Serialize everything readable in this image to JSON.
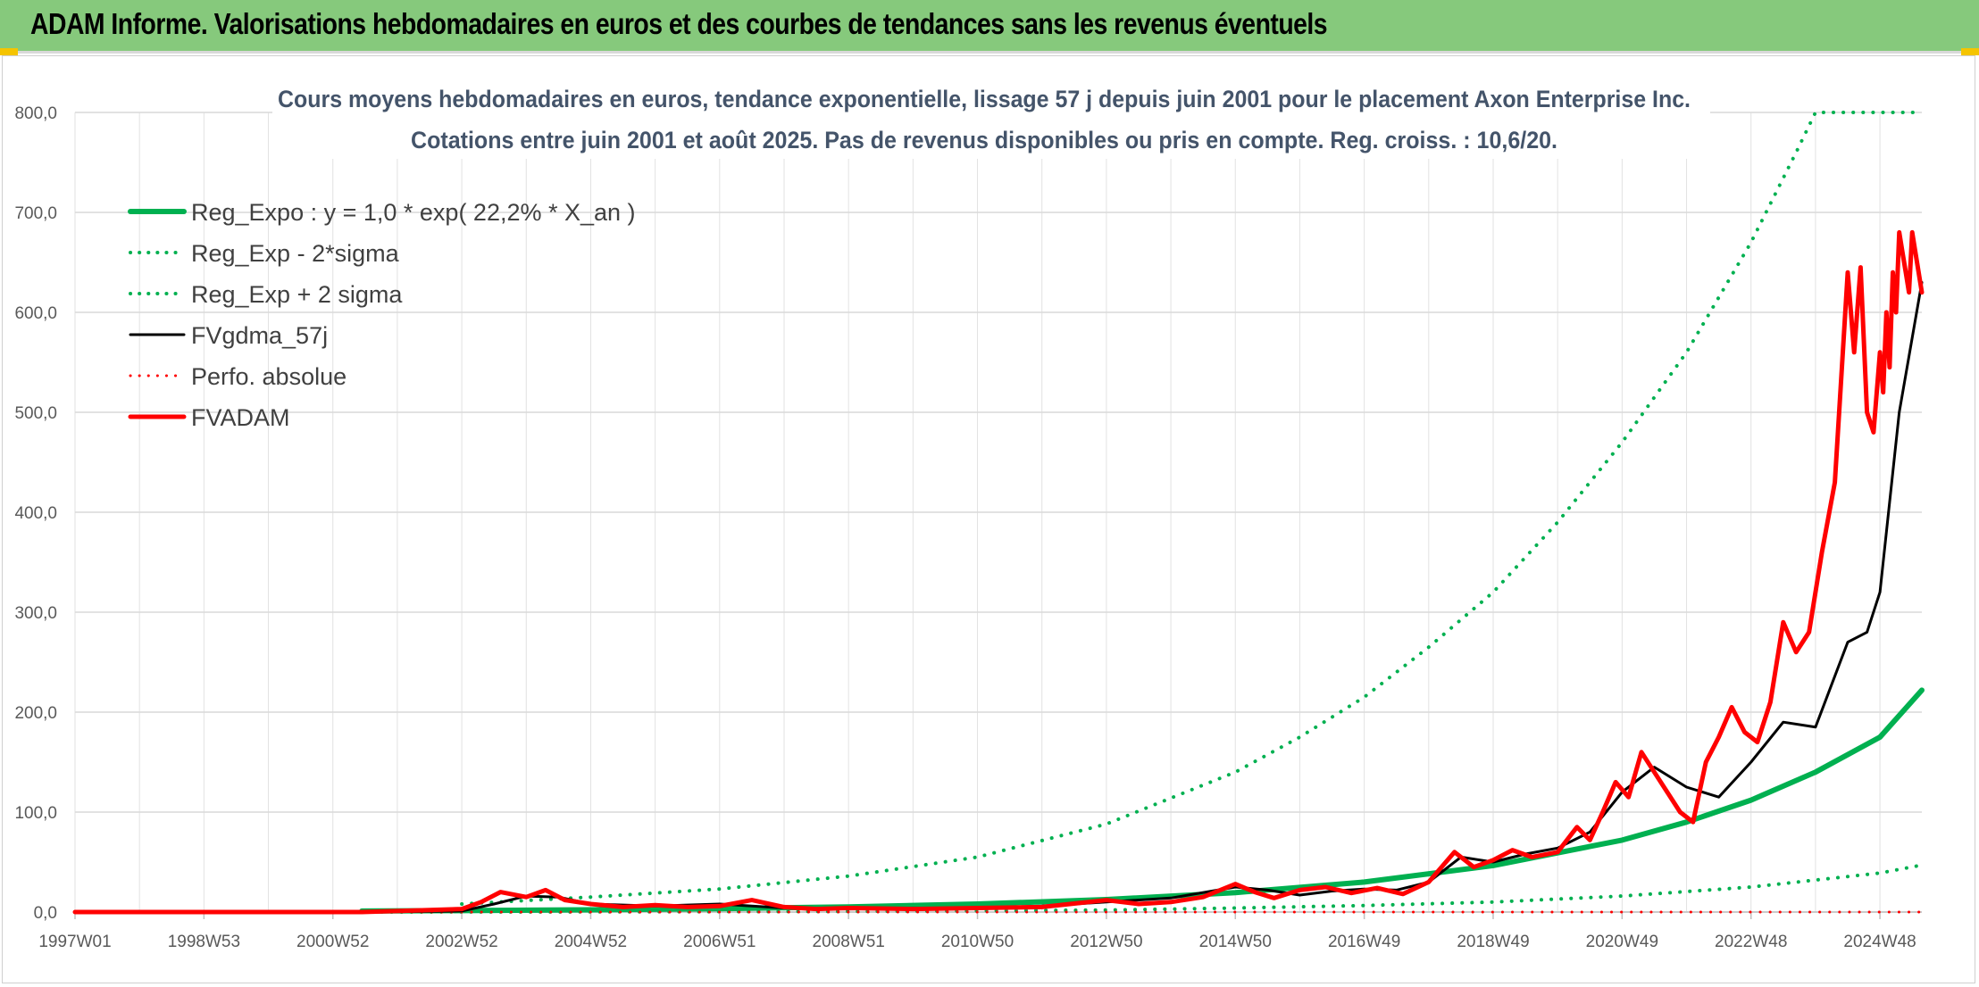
{
  "header": {
    "title": "ADAM Informe. Valorisations hebdomadaires en euros et des courbes de tendances sans les revenus éventuels"
  },
  "colors": {
    "header_bg": "#86c97c",
    "green": "#00b050",
    "red": "#ff0000",
    "black": "#000000",
    "grid": "#d9d9d9",
    "corner_accent": "#f5c400"
  },
  "chart_data": {
    "type": "line",
    "title_lines": [
      "Cours moyens hebdomadaires en euros, tendance exponentielle, lissage 57 j depuis juin 2001 pour le placement Axon Enterprise Inc.",
      "Cotations entre juin 2001 et août 2025. Pas de revenus disponibles ou pris en compte. Reg. croiss. : 10,6/20."
    ],
    "xlabel": "",
    "ylabel": "",
    "x_range": [
      1997.0,
      2025.65
    ],
    "ylim": [
      0,
      800
    ],
    "y_ticks": [
      0,
      100,
      200,
      300,
      400,
      500,
      600,
      700,
      800
    ],
    "y_tick_labels": [
      "0,0",
      "100,0",
      "200,0",
      "300,0",
      "400,0",
      "500,0",
      "600,0",
      "700,0",
      "800,0"
    ],
    "x_ticks": [
      {
        "label": "1997W01",
        "x": 1997.0
      },
      {
        "label": "1998W53",
        "x": 1999.0
      },
      {
        "label": "2000W52",
        "x": 2001.0
      },
      {
        "label": "2002W52",
        "x": 2003.0
      },
      {
        "label": "2004W52",
        "x": 2005.0
      },
      {
        "label": "2006W51",
        "x": 2007.0
      },
      {
        "label": "2008W51",
        "x": 2009.0
      },
      {
        "label": "2010W50",
        "x": 2011.0
      },
      {
        "label": "2012W50",
        "x": 2013.0
      },
      {
        "label": "2014W50",
        "x": 2015.0
      },
      {
        "label": "2016W49",
        "x": 2017.0
      },
      {
        "label": "2018W49",
        "x": 2019.0
      },
      {
        "label": "2020W49",
        "x": 2021.0
      },
      {
        "label": "2022W48",
        "x": 2023.0
      },
      {
        "label": "2024W48",
        "x": 2025.0
      }
    ],
    "grid": "vertical-and-horizontal",
    "legend_position": "top-left",
    "series": [
      {
        "name": "Reg_Expo : y = 1,0 * exp( 22,2% *  X_an )",
        "color": "#00b050",
        "style": "solid",
        "width": 6,
        "x": [
          2001.45,
          2003,
          2005,
          2007,
          2009,
          2011,
          2013,
          2015,
          2017,
          2019,
          2021,
          2022,
          2023,
          2024,
          2025,
          2025.65
        ],
        "y": [
          1.0,
          1.4,
          2.2,
          3.4,
          5.2,
          8.0,
          12.5,
          19.5,
          30.0,
          46.5,
          72.0,
          90.0,
          112.0,
          140.0,
          175.0,
          222.0
        ]
      },
      {
        "name": "Reg_Exp - 2*sigma",
        "color": "#00b050",
        "style": "dotted",
        "width": 4,
        "x": [
          2001.45,
          2005,
          2009,
          2013,
          2015,
          2017,
          2019,
          2021,
          2023,
          2025,
          2025.65
        ],
        "y": [
          0.0,
          0.2,
          0.6,
          2.0,
          4.0,
          6.5,
          10.0,
          16.0,
          25.0,
          39.0,
          47.0
        ]
      },
      {
        "name": "Reg_Exp + 2 sigma",
        "color": "#00b050",
        "style": "dotted",
        "width": 4,
        "x": [
          2003.0,
          2005.0,
          2007.0,
          2009.0,
          2011.0,
          2013.0,
          2015.0,
          2016.0,
          2017.0,
          2018.0,
          2019.0,
          2020.0,
          2021.0,
          2022.0,
          2023.0,
          2023.7,
          2024.0,
          2024.5,
          2025.65
        ],
        "y": [
          8.0,
          15.0,
          23.0,
          36.0,
          55.0,
          88.0,
          140.0,
          175.0,
          215.0,
          265.0,
          320.0,
          390.0,
          470.0,
          560.0,
          670.0,
          760.0,
          800.0,
          800.0,
          800.0
        ]
      },
      {
        "name": "FVgdma_57j",
        "color": "#000000",
        "style": "solid",
        "width": 3,
        "x": [
          1997.0,
          2001.45,
          2003.0,
          2003.5,
          2004.0,
          2004.5,
          2005.0,
          2006.0,
          2007.0,
          2008.0,
          2009.0,
          2010.0,
          2011.0,
          2012.0,
          2013.0,
          2014.0,
          2015.0,
          2015.5,
          2016.0,
          2016.5,
          2017.0,
          2017.5,
          2018.0,
          2018.5,
          2019.0,
          2019.5,
          2020.0,
          2020.5,
          2021.0,
          2021.5,
          2022.0,
          2022.5,
          2023.0,
          2023.5,
          2024.0,
          2024.5,
          2024.8,
          2025.0,
          2025.3,
          2025.65
        ],
        "y": [
          0.0,
          0.0,
          1.0,
          8.0,
          16.0,
          15.0,
          8.0,
          6.0,
          8.0,
          4.0,
          3.0,
          4.0,
          4.0,
          6.0,
          10.0,
          14.0,
          25.0,
          22.0,
          17.0,
          21.0,
          23.0,
          22.0,
          30.0,
          55.0,
          50.0,
          58.0,
          64.0,
          80.0,
          120.0,
          145.0,
          125.0,
          115.0,
          150.0,
          190.0,
          185.0,
          270.0,
          280.0,
          320.0,
          500.0,
          630.0
        ]
      },
      {
        "name": "Perfo. absolue",
        "color": "#ff0000",
        "style": "dotted",
        "width": 3,
        "x": [
          1997.0,
          2025.65
        ],
        "y": [
          0.0,
          0.0
        ]
      },
      {
        "name": "FVADAM",
        "color": "#ff0000",
        "style": "solid",
        "width": 5,
        "x": [
          1997.0,
          2001.45,
          2002.5,
          2003.0,
          2003.3,
          2003.6,
          2004.0,
          2004.3,
          2004.6,
          2005.0,
          2005.5,
          2006.0,
          2006.5,
          2007.0,
          2007.5,
          2008.0,
          2008.5,
          2009.0,
          2010.0,
          2011.0,
          2012.0,
          2013.0,
          2013.5,
          2014.0,
          2014.5,
          2015.0,
          2015.3,
          2015.6,
          2016.0,
          2016.4,
          2016.8,
          2017.2,
          2017.6,
          2018.0,
          2018.4,
          2018.7,
          2019.0,
          2019.3,
          2019.6,
          2020.0,
          2020.3,
          2020.5,
          2020.7,
          2020.9,
          2021.1,
          2021.3,
          2021.5,
          2021.7,
          2021.9,
          2022.1,
          2022.3,
          2022.5,
          2022.7,
          2022.9,
          2023.1,
          2023.3,
          2023.5,
          2023.7,
          2023.9,
          2024.1,
          2024.3,
          2024.5,
          2024.6,
          2024.7,
          2024.8,
          2024.9,
          2025.0,
          2025.05,
          2025.1,
          2025.15,
          2025.2,
          2025.25,
          2025.3,
          2025.35,
          2025.4,
          2025.45,
          2025.5,
          2025.55,
          2025.6,
          2025.65
        ],
        "y": [
          0.0,
          0.0,
          2.0,
          3.0,
          10.0,
          20.0,
          15.0,
          22.0,
          12.0,
          8.0,
          5.0,
          7.0,
          5.0,
          6.0,
          12.0,
          5.0,
          3.0,
          4.0,
          3.0,
          4.0,
          5.0,
          12.0,
          8.0,
          10.0,
          15.0,
          28.0,
          20.0,
          14.0,
          22.0,
          25.0,
          19.0,
          24.0,
          18.0,
          30.0,
          60.0,
          45.0,
          52.0,
          62.0,
          55.0,
          60.0,
          85.0,
          72.0,
          100.0,
          130.0,
          115.0,
          160.0,
          140.0,
          120.0,
          100.0,
          90.0,
          150.0,
          175.0,
          205.0,
          180.0,
          170.0,
          210.0,
          290.0,
          260.0,
          280.0,
          360.0,
          430.0,
          640.0,
          560.0,
          645.0,
          500.0,
          480.0,
          560.0,
          520.0,
          600.0,
          545.0,
          640.0,
          600.0,
          680.0,
          660.0,
          640.0,
          620.0,
          680.0,
          660.0,
          640.0,
          620.0
        ]
      }
    ]
  }
}
